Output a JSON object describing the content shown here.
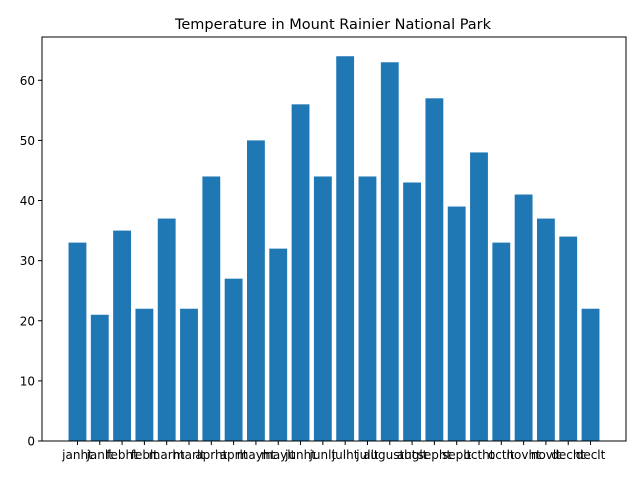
{
  "chart_data": {
    "type": "bar",
    "title": "Temperature in Mount Rainier National Park",
    "xlabel": "",
    "ylabel": "",
    "categories": [
      "janht",
      "janlt",
      "febht",
      "feblt",
      "marht",
      "marlt",
      "aprht",
      "aprlt",
      "mayht",
      "maylt",
      "junht",
      "junlt",
      "julht",
      "jullt",
      "augustht",
      "auglt",
      "sepht",
      "seplt",
      "octht",
      "octlt",
      "novht",
      "novlt",
      "decht",
      "declt"
    ],
    "values": [
      33,
      21,
      35,
      22,
      37,
      22,
      44,
      27,
      50,
      32,
      56,
      44,
      64,
      44,
      63,
      43,
      57,
      39,
      48,
      33,
      41,
      37,
      34,
      22
    ],
    "ylim": [
      0,
      67.2
    ],
    "yticks": [
      0,
      10,
      20,
      30,
      40,
      50,
      60
    ],
    "bar_color": "#1f77b4",
    "grid": false,
    "legend": "none"
  }
}
